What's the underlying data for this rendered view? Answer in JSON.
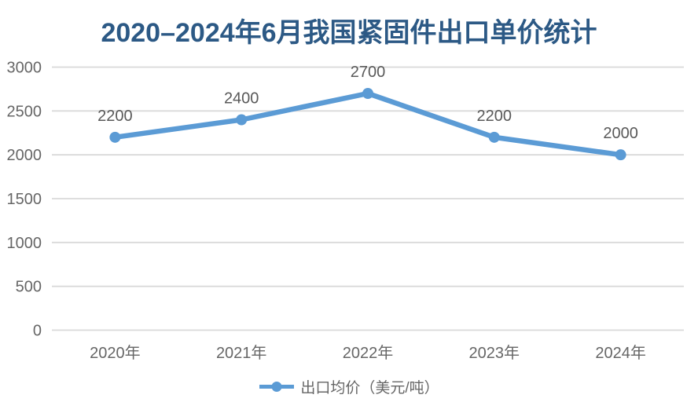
{
  "chart_data": {
    "type": "line",
    "title": "2020–2024年6月我国紧固件出口单价统计",
    "categories": [
      "2020年",
      "2021年",
      "2022年",
      "2023年",
      "2024年"
    ],
    "series": [
      {
        "name": "出口均价（美元/吨）",
        "values": [
          2200,
          2400,
          2700,
          2200,
          2000
        ]
      }
    ],
    "ylim": [
      0,
      3000
    ],
    "ytick_step": 500,
    "ytick_labels": [
      "0",
      "500",
      "1000",
      "1500",
      "2000",
      "2500",
      "3000"
    ],
    "grid": true,
    "data_labels": true,
    "legend_position": "bottom",
    "colors": {
      "line": "#5B9BD5",
      "title": "#2C5985",
      "axis_text": "#666666",
      "data_label": "#595959",
      "gridline": "#D9D9D9",
      "background": "#FFFFFF"
    }
  }
}
